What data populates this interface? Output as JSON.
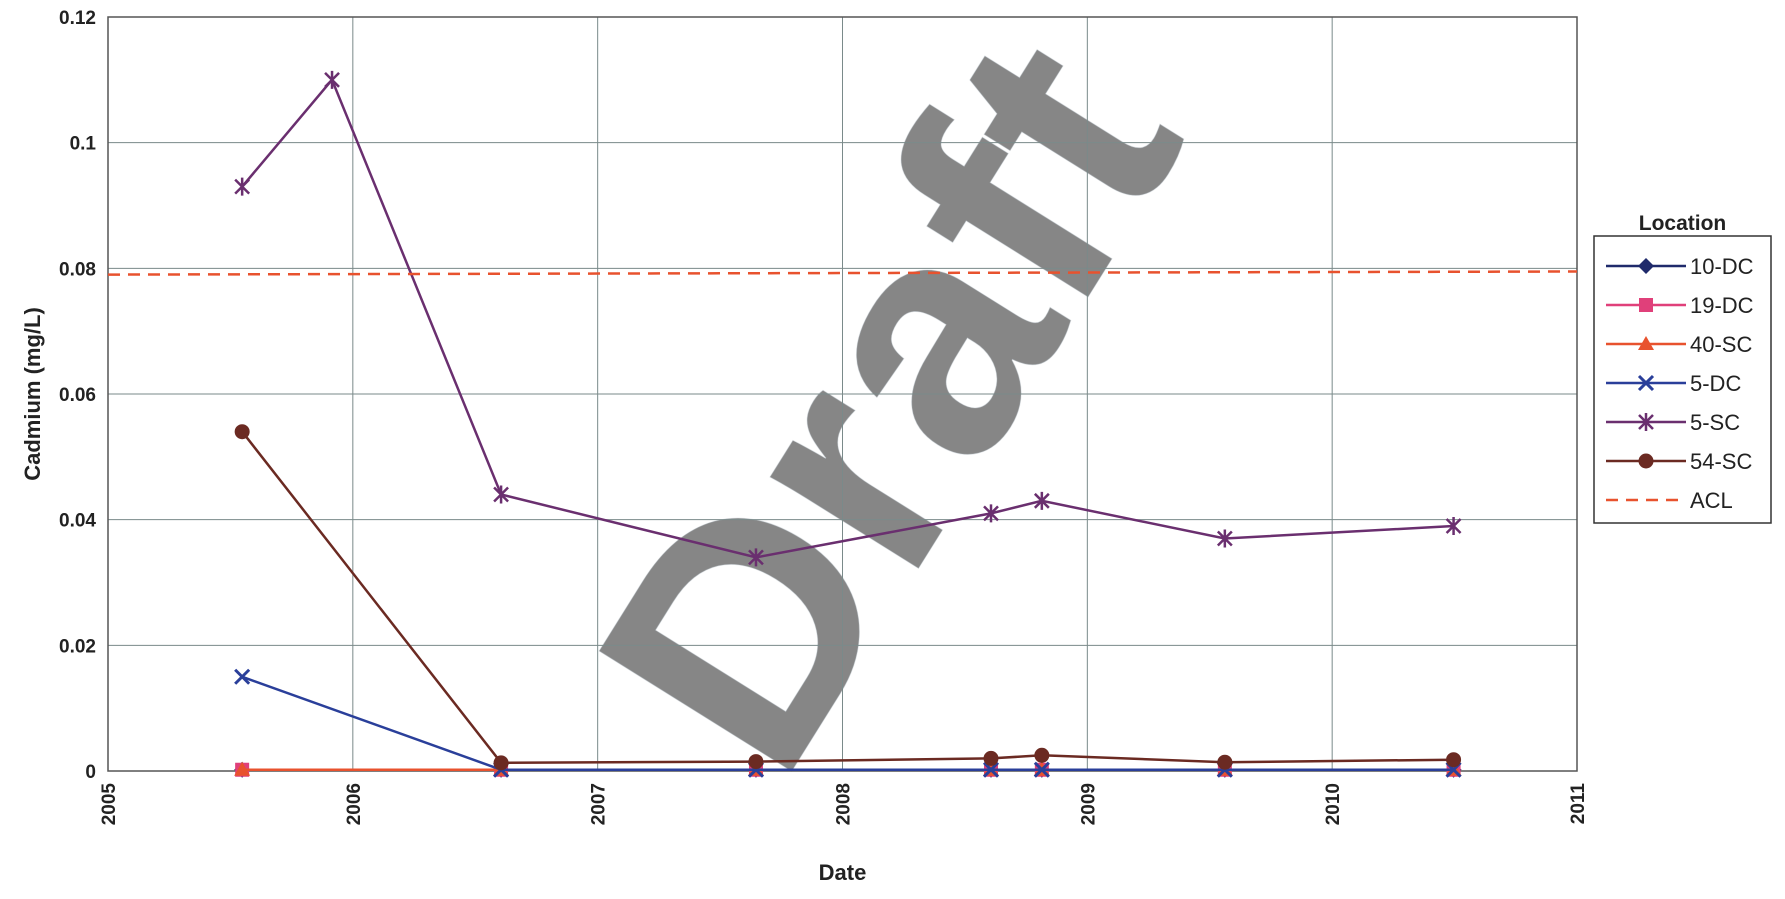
{
  "chart_data": {
    "type": "line",
    "title": "",
    "xlabel": "Date",
    "ylabel": "Cadmium (mg/L)",
    "xlim": [
      "2005",
      "2011"
    ],
    "ylim": [
      0,
      0.12
    ],
    "x_ticks": [
      "2005",
      "2006",
      "2007",
      "2008",
      "2009",
      "2010",
      "2011"
    ],
    "y_ticks": [
      "0",
      "0.02",
      "0.04",
      "0.06",
      "0.08",
      "0.1",
      "0.12"
    ],
    "grid": true,
    "legend": {
      "title": "Location",
      "placement": "right"
    },
    "watermark": "Draft",
    "series": [
      {
        "name": "10-DC",
        "color": "#1f2a6b",
        "marker": "diamond",
        "points": [
          [
            "2005-07-20",
            0.0002
          ],
          [
            "2006-08-10",
            0.0002
          ],
          [
            "2007-08-25",
            0.0002
          ],
          [
            "2008-08-10",
            0.0002
          ],
          [
            "2008-10-25",
            0.0002
          ],
          [
            "2009-07-25",
            0.0002
          ],
          [
            "2010-07-01",
            0.0002
          ]
        ]
      },
      {
        "name": "19-DC",
        "color": "#e0407a",
        "marker": "square",
        "points": [
          [
            "2005-07-20",
            0.0002
          ],
          [
            "2006-08-10",
            0.0002
          ],
          [
            "2007-08-25",
            0.0002
          ],
          [
            "2008-08-10",
            0.0002
          ],
          [
            "2008-10-25",
            0.0002
          ],
          [
            "2009-07-25",
            0.0002
          ],
          [
            "2010-07-01",
            0.0002
          ]
        ]
      },
      {
        "name": "40-SC",
        "color": "#e8522e",
        "marker": "triangle",
        "points": [
          [
            "2005-07-20",
            0.0002
          ],
          [
            "2006-08-10",
            0.0002
          ],
          [
            "2007-08-25",
            0.0002
          ],
          [
            "2008-08-10",
            0.0002
          ],
          [
            "2008-10-25",
            0.0002
          ],
          [
            "2009-07-25",
            0.0002
          ],
          [
            "2010-07-01",
            0.0002
          ]
        ]
      },
      {
        "name": "5-DC",
        "color": "#2a3f9a",
        "marker": "x",
        "points": [
          [
            "2005-07-20",
            0.015
          ],
          [
            "2006-08-10",
            0.0002
          ],
          [
            "2007-08-25",
            0.0002
          ],
          [
            "2008-08-10",
            0.0002
          ],
          [
            "2008-10-25",
            0.0002
          ],
          [
            "2009-07-25",
            0.0002
          ],
          [
            "2010-07-01",
            0.0002
          ]
        ]
      },
      {
        "name": "5-SC",
        "color": "#6a2f6f",
        "marker": "star",
        "points": [
          [
            "2005-07-20",
            0.093
          ],
          [
            "2005-12-01",
            0.11
          ],
          [
            "2006-08-10",
            0.044
          ],
          [
            "2007-08-25",
            0.034
          ],
          [
            "2008-08-10",
            0.041
          ],
          [
            "2008-10-25",
            0.043
          ],
          [
            "2009-07-25",
            0.037
          ],
          [
            "2010-07-01",
            0.039
          ]
        ]
      },
      {
        "name": "54-SC",
        "color": "#6b2a22",
        "marker": "circle",
        "points": [
          [
            "2005-07-20",
            0.054
          ],
          [
            "2006-08-10",
            0.0013
          ],
          [
            "2007-08-25",
            0.0015
          ],
          [
            "2008-08-10",
            0.002
          ],
          [
            "2008-10-25",
            0.0025
          ],
          [
            "2009-07-25",
            0.0014
          ],
          [
            "2010-07-01",
            0.0018
          ]
        ]
      },
      {
        "name": "ACL",
        "color": "#e8522e",
        "marker": "none",
        "dashed": true,
        "points": [
          [
            "2005-01-01",
            0.079
          ],
          [
            "2011-01-01",
            0.0795
          ]
        ]
      }
    ]
  }
}
